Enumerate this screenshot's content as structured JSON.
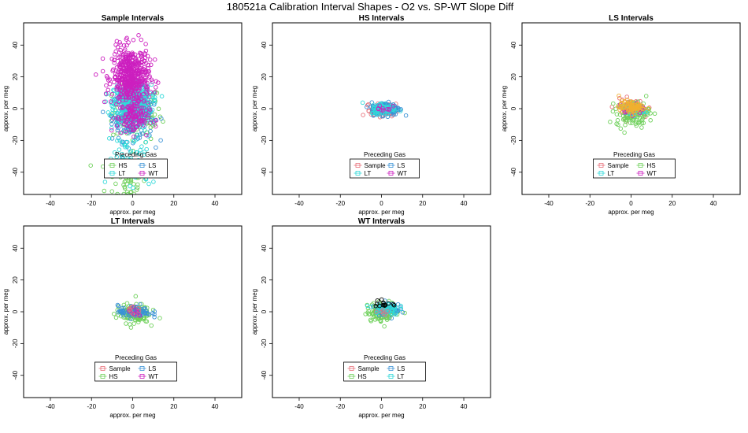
{
  "figure_title": "180521a   Calibration Interval Shapes - O2 vs. SP-WT Slope Diff",
  "colors": {
    "Sample": "#e8707a",
    "HS": "#6ed05a",
    "LS": "#3a92d6",
    "LT": "#2fd9d9",
    "WT": "#cc1fbf",
    "black": "#000000",
    "orange": "#f0b030"
  },
  "chart_data": [
    {
      "type": "scatter",
      "title": "Sample Intervals",
      "xlabel": "approx. per meg",
      "ylabel": "approx. per meg",
      "xlim": [
        -53,
        53
      ],
      "ylim": [
        -54,
        54
      ],
      "xticks": [
        -40,
        -20,
        0,
        20,
        40
      ],
      "yticks": [
        -40,
        -20,
        0,
        20,
        40
      ],
      "legend": {
        "title": "Preceding Gas",
        "position": "bottom-center",
        "entries": [
          "HS",
          "LS",
          "LT",
          "WT"
        ]
      },
      "series": [
        {
          "name": "HS",
          "color": "HS",
          "clusters": [
            {
              "cx": 2,
              "cy": -3,
              "sx": 6,
              "sy": 9,
              "n": 120
            },
            {
              "cx": -3,
              "cy": -45,
              "sx": 5,
              "sy": 8,
              "n": 60
            }
          ]
        },
        {
          "name": "LS",
          "color": "LS",
          "clusters": [
            {
              "cx": 0,
              "cy": -4,
              "sx": 5,
              "sy": 8,
              "n": 180
            }
          ]
        },
        {
          "name": "LT",
          "color": "LT",
          "clusters": [
            {
              "cx": 0,
              "cy": 3,
              "sx": 4.5,
              "sy": 6,
              "n": 520
            },
            {
              "cx": 0,
              "cy": -32,
              "sx": 6,
              "sy": 11,
              "n": 70
            }
          ]
        },
        {
          "name": "WT",
          "color": "WT",
          "clusters": [
            {
              "cx": -1,
              "cy": 20,
              "sx": 4.5,
              "sy": 9,
              "n": 500
            },
            {
              "cx": 0,
              "cy": -6,
              "sx": 4,
              "sy": 5,
              "n": 100
            }
          ]
        }
      ]
    },
    {
      "type": "scatter",
      "title": "HS Intervals",
      "xlabel": "approx. per meg",
      "ylabel": "approx. per meg",
      "xlim": [
        -53,
        53
      ],
      "ylim": [
        -54,
        54
      ],
      "xticks": [
        -40,
        -20,
        0,
        20,
        40
      ],
      "yticks": [
        -40,
        -20,
        0,
        20,
        40
      ],
      "legend": {
        "title": "Preceding Gas",
        "position": "bottom-center",
        "entries": [
          "Sample",
          "LS",
          "LT",
          "WT"
        ]
      },
      "series": [
        {
          "name": "Sample",
          "color": "Sample",
          "clusters": [
            {
              "cx": 1,
              "cy": -1,
              "sx": 3,
              "sy": 2,
              "n": 90
            }
          ]
        },
        {
          "name": "LS",
          "color": "LS",
          "clusters": [
            {
              "cx": 2,
              "cy": 0,
              "sx": 3.5,
              "sy": 2,
              "n": 150
            }
          ]
        },
        {
          "name": "LT",
          "color": "LT",
          "clusters": [
            {
              "cx": 1,
              "cy": 0,
              "sx": 3,
              "sy": 1.8,
              "n": 70
            }
          ]
        },
        {
          "name": "WT",
          "color": "WT",
          "clusters": [
            {
              "cx": 1,
              "cy": 0,
              "sx": 2,
              "sy": 1.5,
              "n": 10
            }
          ]
        }
      ]
    },
    {
      "type": "scatter",
      "title": "LS Intervals",
      "xlabel": "approx. per meg",
      "ylabel": "approx. per meg",
      "xlim": [
        -53,
        53
      ],
      "ylim": [
        -54,
        54
      ],
      "xticks": [
        -40,
        -20,
        0,
        20,
        40
      ],
      "yticks": [
        -40,
        -20,
        0,
        20,
        40
      ],
      "legend": {
        "title": "Preceding Gas",
        "position": "bottom-center",
        "entries": [
          "Sample",
          "HS",
          "LT",
          "WT"
        ]
      },
      "series": [
        {
          "name": "Sample",
          "color": "Sample",
          "clusters": [
            {
              "cx": 0,
              "cy": 0,
              "sx": 4,
              "sy": 3,
              "n": 60
            }
          ]
        },
        {
          "name": "HS",
          "color": "HS",
          "clusters": [
            {
              "cx": 1,
              "cy": -3,
              "sx": 4,
              "sy": 4,
              "n": 120
            }
          ]
        },
        {
          "name": "LT",
          "color": "LT",
          "clusters": [
            {
              "cx": 0,
              "cy": -1,
              "sx": 3,
              "sy": 2,
              "n": 30
            }
          ]
        },
        {
          "name": "WT",
          "color": "WT",
          "clusters": [
            {
              "cx": 0,
              "cy": 0,
              "sx": 3,
              "sy": 2,
              "n": 20
            }
          ]
        },
        {
          "name": "",
          "color": "orange",
          "clusters": [
            {
              "cx": 0,
              "cy": 1,
              "sx": 3,
              "sy": 2,
              "n": 80
            }
          ]
        }
      ]
    },
    {
      "type": "scatter",
      "title": "LT Intervals",
      "xlabel": "approx. per meg",
      "ylabel": "approx. per meg",
      "xlim": [
        -53,
        53
      ],
      "ylim": [
        -54,
        54
      ],
      "xticks": [
        -40,
        -20,
        0,
        20,
        40
      ],
      "yticks": [
        -40,
        -20,
        0,
        20,
        40
      ],
      "legend": {
        "title": "Preceding Gas",
        "position": "bottom-center",
        "entries": [
          "Sample",
          "LS",
          "HS",
          "WT"
        ]
      },
      "series": [
        {
          "name": "HS",
          "color": "HS",
          "clusters": [
            {
              "cx": 0,
              "cy": -1,
              "sx": 4,
              "sy": 3,
              "n": 130
            }
          ]
        },
        {
          "name": "LS",
          "color": "LS",
          "clusters": [
            {
              "cx": 1,
              "cy": 0,
              "sx": 4,
              "sy": 2,
              "n": 80
            }
          ]
        },
        {
          "name": "Sample",
          "color": "Sample",
          "clusters": [
            {
              "cx": 0,
              "cy": 0,
              "sx": 2,
              "sy": 1.5,
              "n": 10
            }
          ]
        },
        {
          "name": "WT",
          "color": "WT",
          "clusters": [
            {
              "cx": 0,
              "cy": 0,
              "sx": 2,
              "sy": 1.5,
              "n": 6
            }
          ]
        }
      ]
    },
    {
      "type": "scatter",
      "title": "WT Intervals",
      "xlabel": "approx. per meg",
      "ylabel": "approx. per meg",
      "xlim": [
        -53,
        53
      ],
      "ylim": [
        -54,
        54
      ],
      "xticks": [
        -40,
        -20,
        0,
        20,
        40
      ],
      "yticks": [
        -40,
        -20,
        0,
        20,
        40
      ],
      "legend": {
        "title": "Preceding Gas",
        "position": "bottom-center",
        "entries": [
          "Sample",
          "LS",
          "HS",
          "LT"
        ]
      },
      "series": [
        {
          "name": "HS",
          "color": "HS",
          "clusters": [
            {
              "cx": 1,
              "cy": 0,
              "sx": 4,
              "sy": 3,
              "n": 110
            }
          ]
        },
        {
          "name": "LS",
          "color": "LS",
          "clusters": [
            {
              "cx": 3,
              "cy": 2,
              "sx": 3,
              "sy": 2,
              "n": 50
            }
          ]
        },
        {
          "name": "LT",
          "color": "LT",
          "clusters": [
            {
              "cx": 2,
              "cy": 2,
              "sx": 3,
              "sy": 2,
              "n": 60
            }
          ]
        },
        {
          "name": "Sample",
          "color": "Sample",
          "clusters": [
            {
              "cx": 0,
              "cy": 0,
              "sx": 2,
              "sy": 1.5,
              "n": 6
            }
          ]
        },
        {
          "name": "",
          "color": "black",
          "clusters": [
            {
              "cx": 1,
              "cy": 5,
              "sx": 2,
              "sy": 1.5,
              "n": 14
            }
          ]
        }
      ]
    }
  ]
}
